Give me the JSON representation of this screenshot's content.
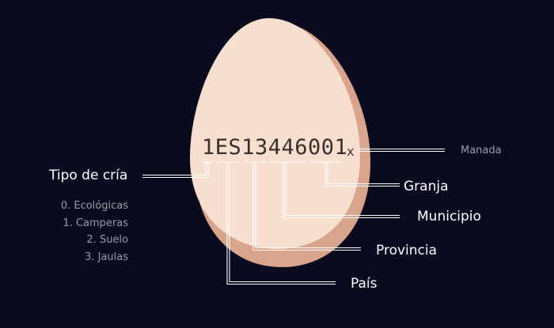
{
  "colors": {
    "background": "#0b0b20",
    "egg_light": "#f7dfd0",
    "egg_shadow": "#d8a58c",
    "line": "#ffffff",
    "code_text": "#3a2e2a",
    "muted_text": "#9a9aa6"
  },
  "egg_code": {
    "value": "1ES13446001",
    "suffix": "x"
  },
  "labels": {
    "manada": "Manada",
    "granja": "Granja",
    "municipio": "Municipio",
    "provincia": "Provincia",
    "pais": "País",
    "tipo_de_cria": "Tipo de cría"
  },
  "tipos_de_cria": [
    "0. Ecológicas",
    "1. Camperas",
    "2. Suelo",
    "3. Jaulas"
  ]
}
